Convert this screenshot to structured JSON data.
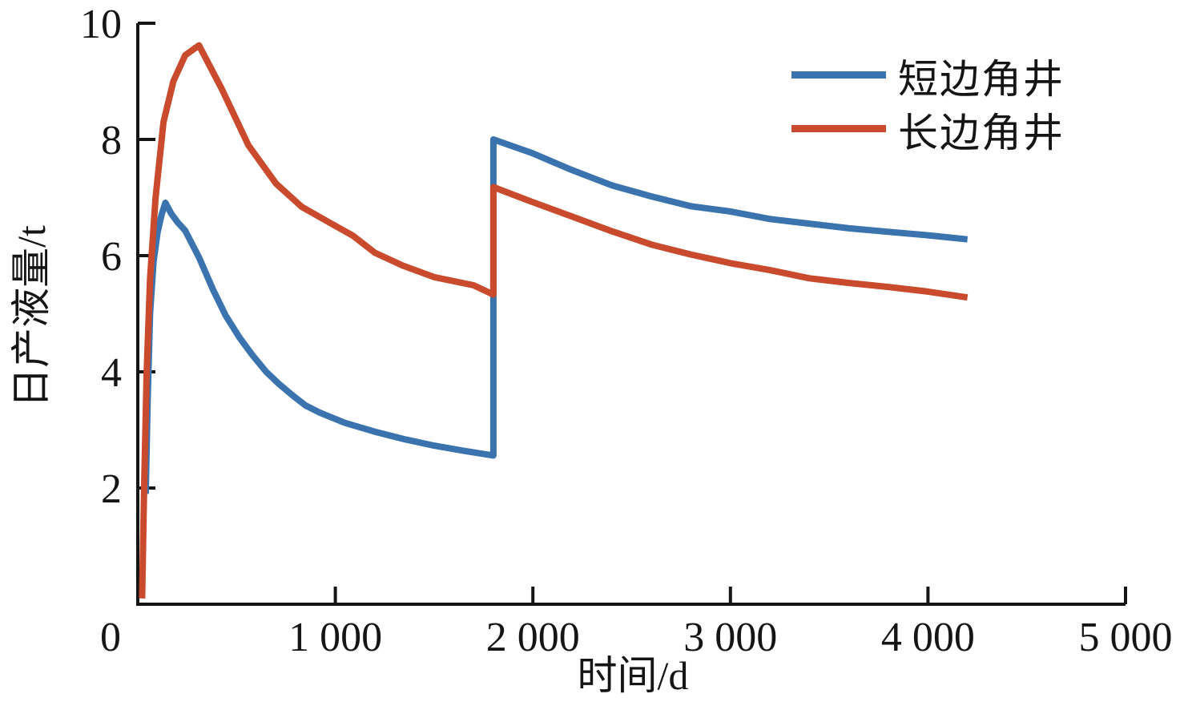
{
  "chart_data": {
    "type": "line",
    "title": "",
    "xlabel": "时间/d",
    "ylabel": "日产液量/t",
    "xlim": [
      0,
      5000
    ],
    "ylim": [
      0,
      10
    ],
    "xticks": [
      0,
      1000,
      2000,
      3000,
      4000,
      5000
    ],
    "xtick_labels": [
      "0",
      "1 000",
      "2 000",
      "3 000",
      "4 000",
      "5 000"
    ],
    "yticks": [
      2,
      4,
      6,
      8,
      10
    ],
    "ytick_labels": [
      "2",
      "4",
      "6",
      "8",
      "10"
    ],
    "grid": false,
    "legend_position": "top-right",
    "axis_color": "#151515",
    "background_color": "#ffffff",
    "series": [
      {
        "name": "短边角井",
        "color": "#3a73ae",
        "points": [
          [
            40,
            1.9
          ],
          [
            50,
            3.5
          ],
          [
            62,
            5.0
          ],
          [
            80,
            5.9
          ],
          [
            100,
            6.4
          ],
          [
            120,
            6.7
          ],
          [
            140,
            6.91
          ],
          [
            170,
            6.72
          ],
          [
            200,
            6.58
          ],
          [
            240,
            6.43
          ],
          [
            310,
            5.97
          ],
          [
            380,
            5.42
          ],
          [
            445,
            4.97
          ],
          [
            515,
            4.59
          ],
          [
            580,
            4.29
          ],
          [
            650,
            4.0
          ],
          [
            715,
            3.79
          ],
          [
            785,
            3.59
          ],
          [
            850,
            3.42
          ],
          [
            920,
            3.3
          ],
          [
            1050,
            3.12
          ],
          [
            1200,
            2.97
          ],
          [
            1350,
            2.84
          ],
          [
            1500,
            2.73
          ],
          [
            1650,
            2.64
          ],
          [
            1800,
            2.56
          ],
          [
            1800,
            8.0
          ],
          [
            2000,
            7.76
          ],
          [
            2200,
            7.47
          ],
          [
            2400,
            7.21
          ],
          [
            2600,
            7.02
          ],
          [
            2800,
            6.85
          ],
          [
            3000,
            6.76
          ],
          [
            3200,
            6.63
          ],
          [
            3400,
            6.55
          ],
          [
            3600,
            6.47
          ],
          [
            3800,
            6.41
          ],
          [
            4000,
            6.35
          ],
          [
            4200,
            6.28
          ]
        ]
      },
      {
        "name": "长边角井",
        "color": "#ca4a2d",
        "points": [
          [
            22,
            0.1
          ],
          [
            32,
            2.0
          ],
          [
            45,
            4.0
          ],
          [
            62,
            5.6
          ],
          [
            90,
            7.0
          ],
          [
            130,
            8.3
          ],
          [
            180,
            9.0
          ],
          [
            240,
            9.45
          ],
          [
            310,
            9.62
          ],
          [
            425,
            8.87
          ],
          [
            560,
            7.9
          ],
          [
            700,
            7.24
          ],
          [
            830,
            6.84
          ],
          [
            970,
            6.57
          ],
          [
            1090,
            6.34
          ],
          [
            1200,
            6.05
          ],
          [
            1340,
            5.83
          ],
          [
            1500,
            5.63
          ],
          [
            1700,
            5.49
          ],
          [
            1800,
            5.33
          ],
          [
            1800,
            7.18
          ],
          [
            2000,
            6.92
          ],
          [
            2200,
            6.67
          ],
          [
            2400,
            6.42
          ],
          [
            2600,
            6.19
          ],
          [
            2800,
            6.02
          ],
          [
            3000,
            5.87
          ],
          [
            3200,
            5.75
          ],
          [
            3400,
            5.61
          ],
          [
            3600,
            5.53
          ],
          [
            3800,
            5.46
          ],
          [
            4000,
            5.38
          ],
          [
            4200,
            5.28
          ]
        ]
      }
    ]
  }
}
